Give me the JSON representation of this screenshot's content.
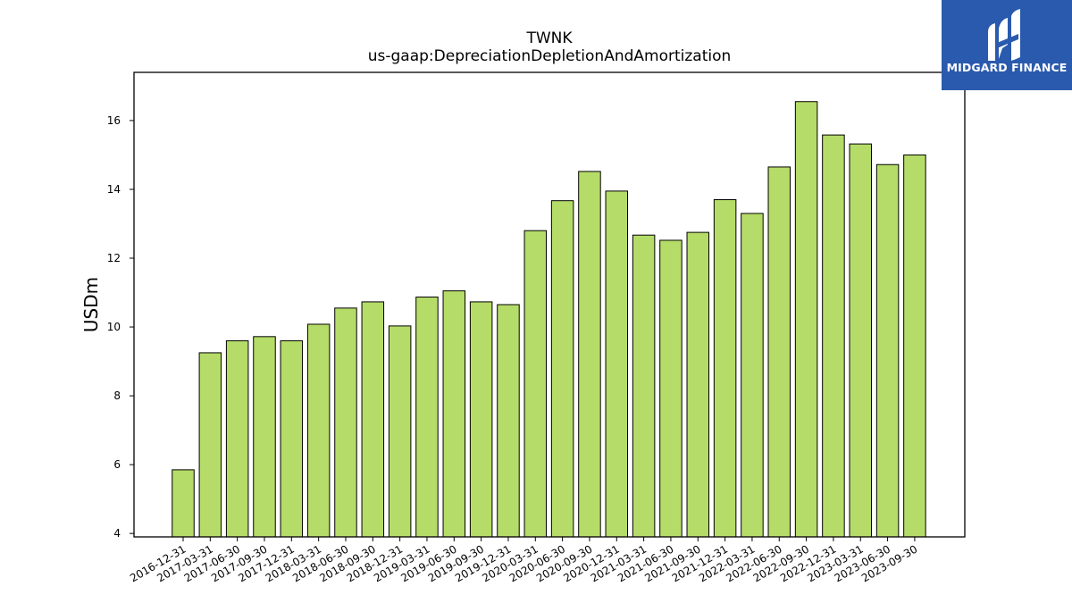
{
  "chart_data": {
    "type": "bar",
    "title": "TWNK",
    "subtitle": "us-gaap:DepreciationDepletionAndAmortization",
    "xlabel": "",
    "ylabel": "USDm",
    "ylim": [
      3.9,
      17.4
    ],
    "yticks": [
      "4",
      "6",
      "8",
      "10",
      "12",
      "14",
      "16"
    ],
    "grid": false,
    "bar_color": "#b5dc68",
    "categories": [
      "2016-12-31",
      "2017-03-31",
      "2017-06-30",
      "2017-09-30",
      "2017-12-31",
      "2018-03-31",
      "2018-06-30",
      "2018-09-30",
      "2018-12-31",
      "2019-03-31",
      "2019-06-30",
      "2019-09-30",
      "2019-12-31",
      "2020-03-31",
      "2020-06-30",
      "2020-09-30",
      "2020-12-31",
      "2021-03-31",
      "2021-06-30",
      "2021-09-30",
      "2021-12-31",
      "2022-03-31",
      "2022-06-30",
      "2022-09-30",
      "2022-12-31",
      "2023-03-31",
      "2023-06-30",
      "2023-09-30"
    ],
    "values": [
      5.85,
      9.25,
      9.6,
      9.72,
      9.6,
      10.08,
      10.55,
      10.73,
      10.03,
      10.87,
      11.05,
      10.73,
      10.65,
      12.8,
      13.67,
      14.52,
      13.95,
      12.67,
      12.52,
      12.75,
      13.7,
      13.3,
      14.65,
      16.55,
      15.58,
      15.32,
      14.72,
      15.0
    ]
  },
  "logo": {
    "text": "MIDGARD FINANCE",
    "icon": "midgard-logo-icon",
    "background": "#2a5aad"
  }
}
